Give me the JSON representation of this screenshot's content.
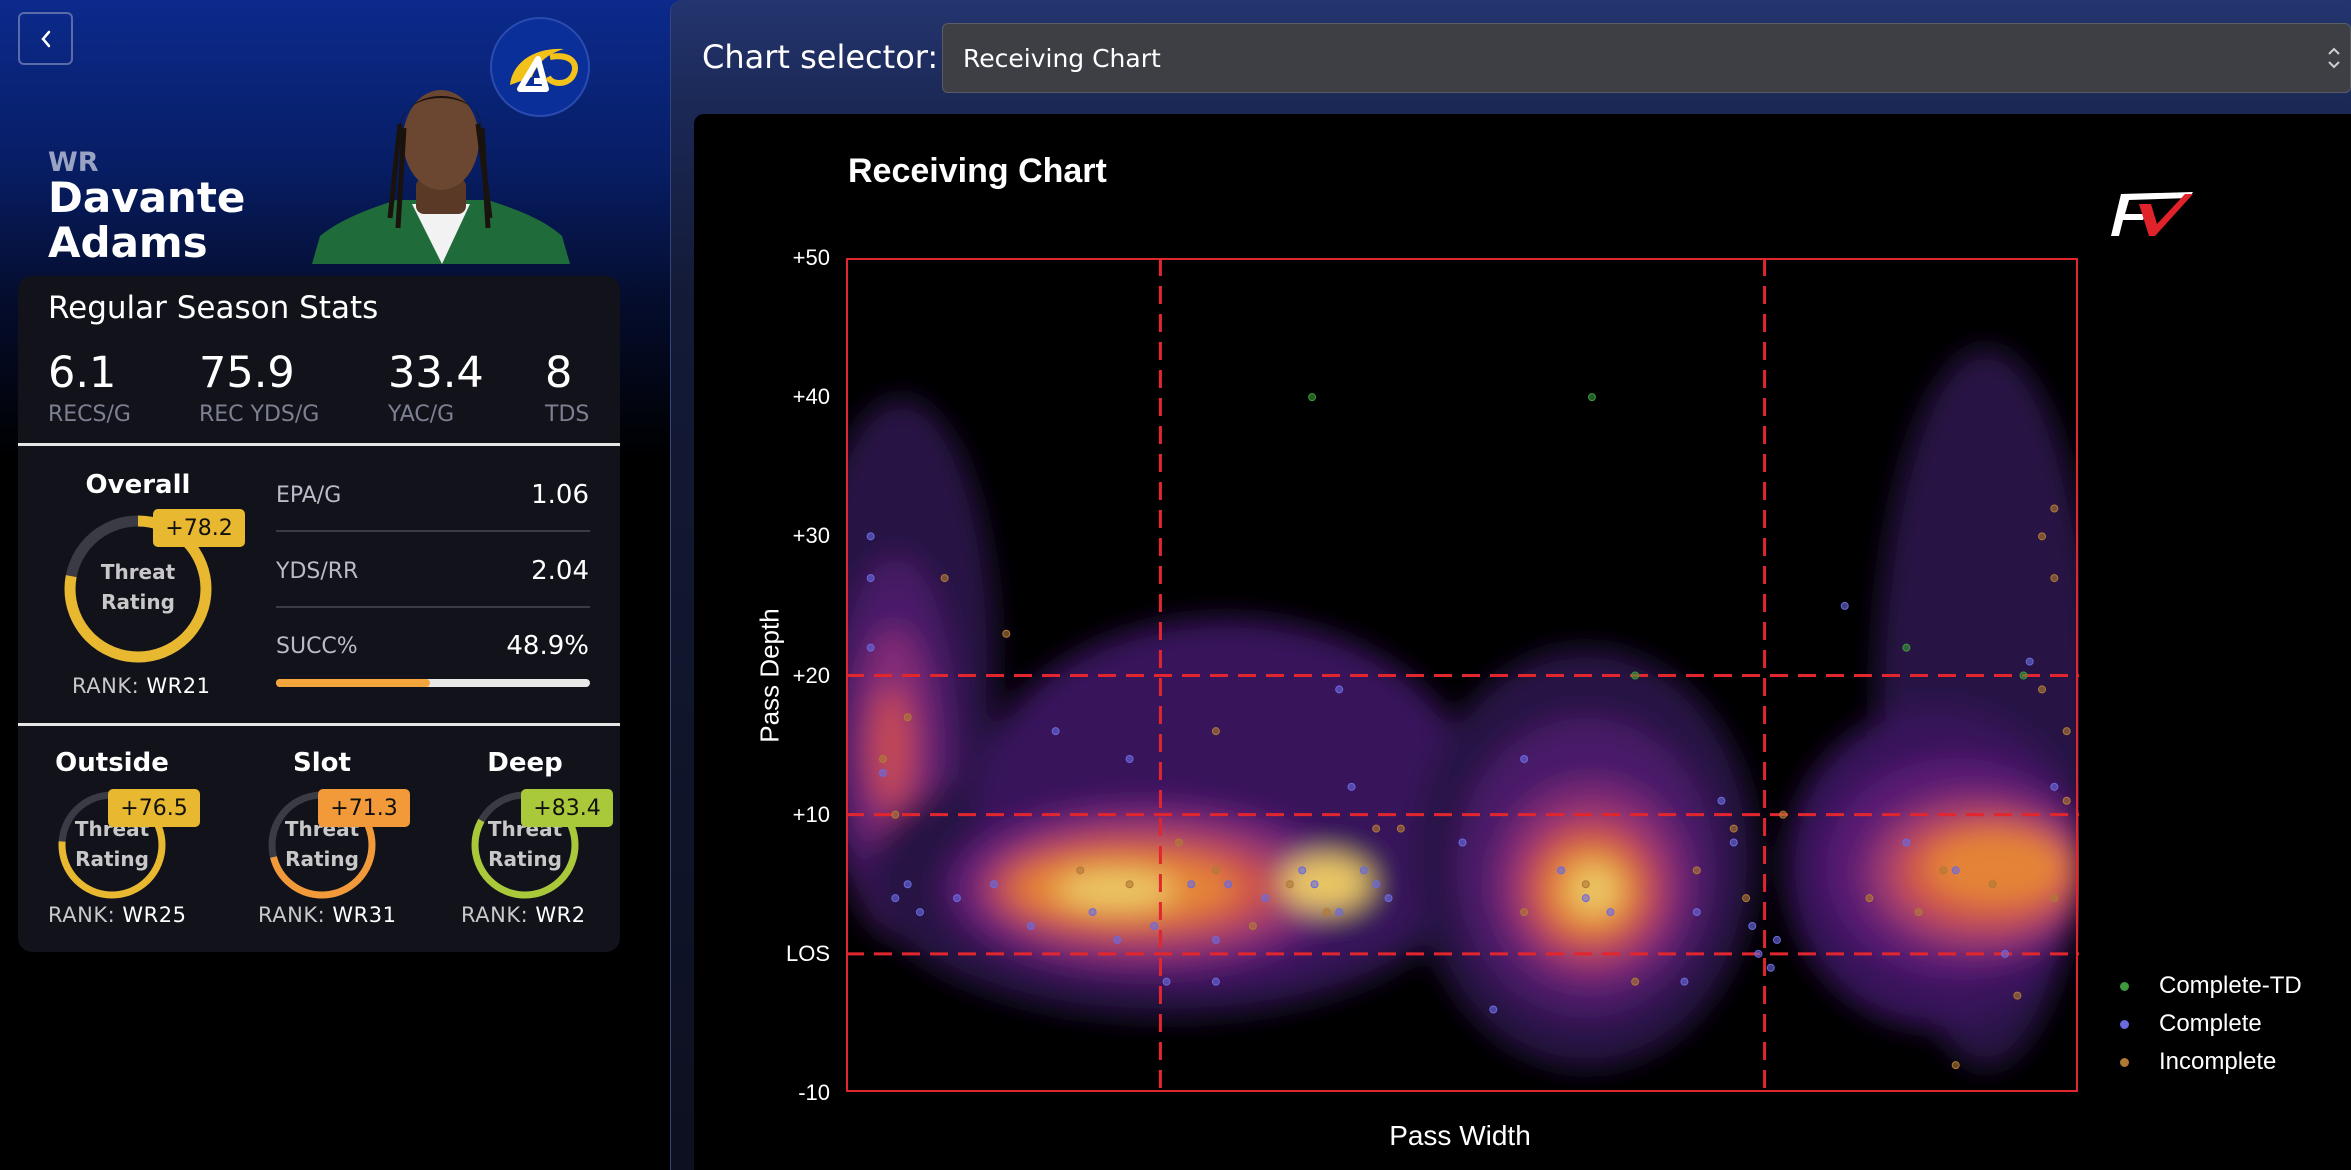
{
  "player": {
    "position": "WR",
    "first_name": "Davante",
    "last_name": "Adams"
  },
  "season": {
    "title": "Regular Season Stats",
    "stats": [
      {
        "value": "6.1",
        "label": "RECS/G"
      },
      {
        "value": "75.9",
        "label": "REC YDS/G"
      },
      {
        "value": "33.4",
        "label": "YAC/G"
      },
      {
        "value": "8",
        "label": "TDS"
      }
    ]
  },
  "overall": {
    "title": "Overall",
    "ring_line1": "Threat",
    "ring_line2": "Rating",
    "badge": "+78.2",
    "rank_label": "RANK:",
    "rank": "WR21",
    "ring_fraction": 0.78,
    "color": "#e8b830"
  },
  "metrics": [
    {
      "label": "EPA/G",
      "value": "1.06"
    },
    {
      "label": "YDS/RR",
      "value": "2.04"
    },
    {
      "label": "SUCC%",
      "value": "48.9%"
    }
  ],
  "succ_fraction": 0.489,
  "splits": [
    {
      "title": "Outside",
      "badge": "+76.5",
      "ring_line1": "Threat",
      "ring_line2": "Rating",
      "rank_label": "RANK:",
      "rank": "WR25",
      "color": "#e8b830",
      "ring_fraction": 0.76
    },
    {
      "title": "Slot",
      "badge": "+71.3",
      "ring_line1": "Threat",
      "ring_line2": "Rating",
      "rank_label": "RANK:",
      "rank": "WR31",
      "color": "#f29a3a",
      "ring_fraction": 0.71
    },
    {
      "title": "Deep",
      "badge": "+83.4",
      "ring_line1": "Threat",
      "ring_line2": "Rating",
      "rank_label": "RANK:",
      "rank": "WR2",
      "color": "#a9c83a",
      "ring_fraction": 0.83
    }
  ],
  "selector": {
    "label": "Chart selector:",
    "value": "Receiving Chart"
  },
  "chart_data": {
    "type": "scatter",
    "title": "Receiving Chart",
    "xlabel": "Pass Width",
    "ylabel": "Pass Depth",
    "ylim": [
      -10,
      50
    ],
    "y_ticks": [
      "+50",
      "+40",
      "+30",
      "+20",
      "+10",
      "LOS",
      "-10"
    ],
    "y_tick_values": [
      50,
      40,
      30,
      20,
      10,
      0,
      -10
    ],
    "xlim": [
      0,
      1
    ],
    "zone_lines_x": [
      0.255,
      0.745
    ],
    "zone_lines_y": [
      20,
      10,
      0
    ],
    "legend_position": "bottom-right",
    "series": [
      {
        "name": "Complete-TD",
        "color": "#3c9a3c",
        "points": [
          [
            0.378,
            40
          ],
          [
            0.605,
            40
          ],
          [
            0.64,
            20
          ],
          [
            0.86,
            22
          ],
          [
            0.955,
            20
          ]
        ]
      },
      {
        "name": "Complete",
        "color": "#6a6ae0",
        "points": [
          [
            0.02,
            30
          ],
          [
            0.02,
            27
          ],
          [
            0.02,
            22
          ],
          [
            0.03,
            13
          ],
          [
            0.04,
            4
          ],
          [
            0.05,
            5
          ],
          [
            0.06,
            3
          ],
          [
            0.09,
            4
          ],
          [
            0.12,
            5
          ],
          [
            0.15,
            2
          ],
          [
            0.17,
            16
          ],
          [
            0.2,
            3
          ],
          [
            0.22,
            1
          ],
          [
            0.23,
            14
          ],
          [
            0.25,
            2
          ],
          [
            0.26,
            -2
          ],
          [
            0.28,
            5
          ],
          [
            0.3,
            1
          ],
          [
            0.3,
            -2
          ],
          [
            0.31,
            5
          ],
          [
            0.34,
            4
          ],
          [
            0.37,
            6
          ],
          [
            0.38,
            5
          ],
          [
            0.4,
            3
          ],
          [
            0.42,
            6
          ],
          [
            0.4,
            19
          ],
          [
            0.41,
            12
          ],
          [
            0.43,
            5
          ],
          [
            0.44,
            4
          ],
          [
            0.5,
            8
          ],
          [
            0.525,
            -4
          ],
          [
            0.55,
            14
          ],
          [
            0.58,
            6
          ],
          [
            0.6,
            4
          ],
          [
            0.62,
            3
          ],
          [
            0.68,
            -2
          ],
          [
            0.69,
            3
          ],
          [
            0.71,
            11
          ],
          [
            0.72,
            8
          ],
          [
            0.735,
            2
          ],
          [
            0.74,
            0
          ],
          [
            0.75,
            -1
          ],
          [
            0.755,
            1
          ],
          [
            0.81,
            25
          ],
          [
            0.86,
            8
          ],
          [
            0.9,
            6
          ],
          [
            0.94,
            0
          ],
          [
            0.96,
            21
          ],
          [
            0.98,
            12
          ]
        ]
      },
      {
        "name": "Incomplete",
        "color": "#b07a35",
        "points": [
          [
            0.03,
            14
          ],
          [
            0.04,
            10
          ],
          [
            0.05,
            17
          ],
          [
            0.08,
            27
          ],
          [
            0.13,
            23
          ],
          [
            0.19,
            6
          ],
          [
            0.23,
            5
          ],
          [
            0.27,
            8
          ],
          [
            0.3,
            6
          ],
          [
            0.3,
            16
          ],
          [
            0.33,
            2
          ],
          [
            0.36,
            5
          ],
          [
            0.39,
            3
          ],
          [
            0.43,
            9
          ],
          [
            0.45,
            9
          ],
          [
            0.55,
            3
          ],
          [
            0.6,
            5
          ],
          [
            0.64,
            -2
          ],
          [
            0.69,
            6
          ],
          [
            0.72,
            9
          ],
          [
            0.73,
            4
          ],
          [
            0.76,
            10
          ],
          [
            0.83,
            4
          ],
          [
            0.87,
            3
          ],
          [
            0.89,
            6
          ],
          [
            0.93,
            5
          ],
          [
            0.97,
            19
          ],
          [
            0.97,
            30
          ],
          [
            0.98,
            32
          ],
          [
            0.98,
            27
          ],
          [
            0.99,
            11
          ],
          [
            0.99,
            16
          ],
          [
            0.98,
            4
          ],
          [
            0.95,
            -3
          ],
          [
            0.9,
            -8
          ]
        ]
      }
    ]
  }
}
